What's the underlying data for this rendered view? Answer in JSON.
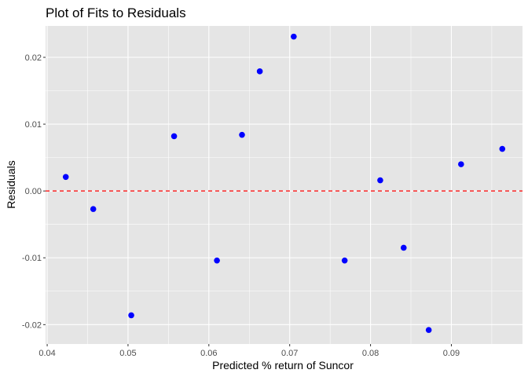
{
  "chart_data": {
    "type": "scatter",
    "title": "Plot of Fits to Residuals",
    "xlabel": "Predicted % return of Suncor",
    "ylabel": "Residuals",
    "xlim": [
      0.0398,
      0.0988
    ],
    "ylim": [
      -0.0229,
      0.0247
    ],
    "x_ticks": [
      0.04,
      0.05,
      0.06,
      0.07,
      0.08,
      0.09
    ],
    "x_tick_labels": [
      "0.04",
      "0.05",
      "0.06",
      "0.07",
      "0.08",
      "0.09"
    ],
    "y_ticks": [
      -0.02,
      -0.01,
      0.0,
      0.01,
      0.02
    ],
    "y_tick_labels": [
      "-0.02",
      "-0.01",
      "0.00",
      "0.01",
      "0.02"
    ],
    "grid": true,
    "panel_background": "#e5e5e5",
    "grid_color": "#ffffff",
    "point_color": "#0000ff",
    "reference_line": {
      "y": 0,
      "color": "#ff0000",
      "style": "dashed"
    },
    "x": [
      0.0423,
      0.0457,
      0.0504,
      0.0557,
      0.061,
      0.0641,
      0.0663,
      0.0705,
      0.0768,
      0.0812,
      0.0841,
      0.0872,
      0.0912,
      0.0963
    ],
    "y": [
      0.0021,
      -0.0027,
      -0.0186,
      0.0082,
      -0.0104,
      0.0084,
      0.0179,
      0.0231,
      -0.0104,
      0.0016,
      -0.0085,
      -0.0208,
      0.004,
      0.0063
    ]
  }
}
